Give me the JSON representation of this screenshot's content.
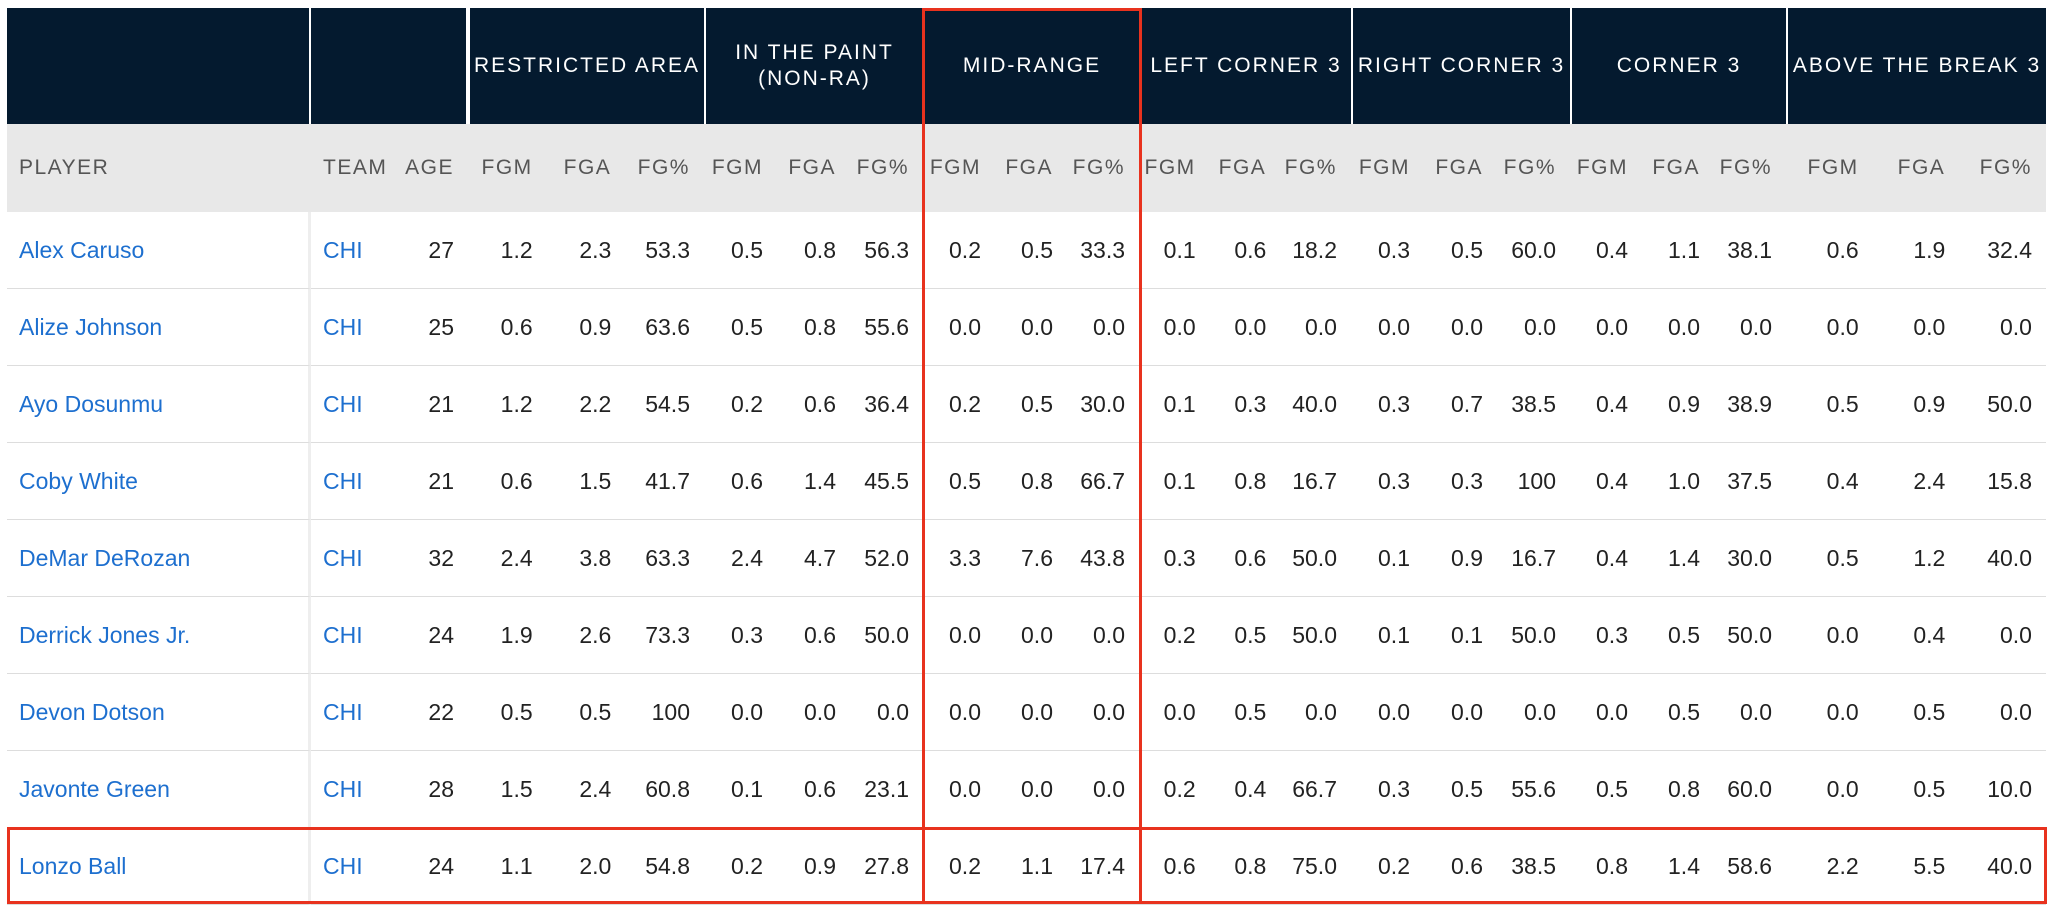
{
  "table": {
    "groups": [
      "RESTRICTED AREA",
      "IN THE PAINT\n(NON-RA)",
      "MID-RANGE",
      "LEFT CORNER 3",
      "RIGHT CORNER 3",
      "CORNER 3",
      "ABOVE THE BREAK 3"
    ],
    "columns": [
      "PLAYER",
      "TEAM",
      "AGE",
      "FGM",
      "FGA",
      "FG%",
      "FGM",
      "FGA",
      "FG%",
      "FGM",
      "FGA",
      "FG%",
      "FGM",
      "FGA",
      "FG%",
      "FGM",
      "FGA",
      "FG%",
      "FGM",
      "FGA",
      "FG%",
      "FGM",
      "FGA",
      "FG%"
    ],
    "rows": [
      [
        "Alex Caruso",
        "CHI",
        "27",
        "1.2",
        "2.3",
        "53.3",
        "0.5",
        "0.8",
        "56.3",
        "0.2",
        "0.5",
        "33.3",
        "0.1",
        "0.6",
        "18.2",
        "0.3",
        "0.5",
        "60.0",
        "0.4",
        "1.1",
        "38.1",
        "0.6",
        "1.9",
        "32.4"
      ],
      [
        "Alize Johnson",
        "CHI",
        "25",
        "0.6",
        "0.9",
        "63.6",
        "0.5",
        "0.8",
        "55.6",
        "0.0",
        "0.0",
        "0.0",
        "0.0",
        "0.0",
        "0.0",
        "0.0",
        "0.0",
        "0.0",
        "0.0",
        "0.0",
        "0.0",
        "0.0",
        "0.0",
        "0.0"
      ],
      [
        "Ayo Dosunmu",
        "CHI",
        "21",
        "1.2",
        "2.2",
        "54.5",
        "0.2",
        "0.6",
        "36.4",
        "0.2",
        "0.5",
        "30.0",
        "0.1",
        "0.3",
        "40.0",
        "0.3",
        "0.7",
        "38.5",
        "0.4",
        "0.9",
        "38.9",
        "0.5",
        "0.9",
        "50.0"
      ],
      [
        "Coby White",
        "CHI",
        "21",
        "0.6",
        "1.5",
        "41.7",
        "0.6",
        "1.4",
        "45.5",
        "0.5",
        "0.8",
        "66.7",
        "0.1",
        "0.8",
        "16.7",
        "0.3",
        "0.3",
        "100",
        "0.4",
        "1.0",
        "37.5",
        "0.4",
        "2.4",
        "15.8"
      ],
      [
        "DeMar DeRozan",
        "CHI",
        "32",
        "2.4",
        "3.8",
        "63.3",
        "2.4",
        "4.7",
        "52.0",
        "3.3",
        "7.6",
        "43.8",
        "0.3",
        "0.6",
        "50.0",
        "0.1",
        "0.9",
        "16.7",
        "0.4",
        "1.4",
        "30.0",
        "0.5",
        "1.2",
        "40.0"
      ],
      [
        "Derrick Jones Jr.",
        "CHI",
        "24",
        "1.9",
        "2.6",
        "73.3",
        "0.3",
        "0.6",
        "50.0",
        "0.0",
        "0.0",
        "0.0",
        "0.2",
        "0.5",
        "50.0",
        "0.1",
        "0.1",
        "50.0",
        "0.3",
        "0.5",
        "50.0",
        "0.0",
        "0.4",
        "0.0"
      ],
      [
        "Devon Dotson",
        "CHI",
        "22",
        "0.5",
        "0.5",
        "100",
        "0.0",
        "0.0",
        "0.0",
        "0.0",
        "0.0",
        "0.0",
        "0.0",
        "0.5",
        "0.0",
        "0.0",
        "0.0",
        "0.0",
        "0.0",
        "0.5",
        "0.0",
        "0.0",
        "0.5",
        "0.0"
      ],
      [
        "Javonte Green",
        "CHI",
        "28",
        "1.5",
        "2.4",
        "60.8",
        "0.1",
        "0.6",
        "23.1",
        "0.0",
        "0.0",
        "0.0",
        "0.2",
        "0.4",
        "66.7",
        "0.3",
        "0.5",
        "55.6",
        "0.5",
        "0.8",
        "60.0",
        "0.0",
        "0.5",
        "10.0"
      ],
      [
        "Lonzo Ball",
        "CHI",
        "24",
        "1.1",
        "2.0",
        "54.8",
        "0.2",
        "0.9",
        "27.8",
        "0.2",
        "1.1",
        "17.4",
        "0.6",
        "0.8",
        "75.0",
        "0.2",
        "0.6",
        "38.5",
        "0.8",
        "1.4",
        "58.6",
        "2.2",
        "5.5",
        "40.0"
      ]
    ]
  }
}
